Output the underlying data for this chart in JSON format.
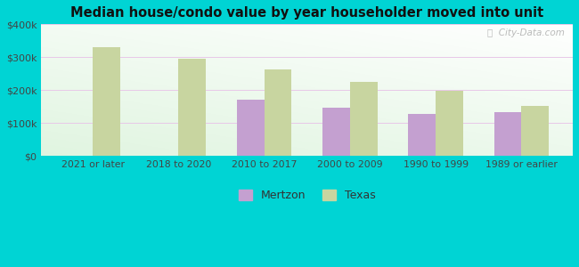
{
  "title": "Median house/condo value by year householder moved into unit",
  "categories": [
    "2021 or later",
    "2018 to 2020",
    "2010 to 2017",
    "2000 to 2009",
    "1990 to 1999",
    "1989 or earlier"
  ],
  "mertzon": [
    null,
    null,
    172000,
    147000,
    128000,
    132000
  ],
  "texas": [
    330000,
    295000,
    262000,
    225000,
    197000,
    152000
  ],
  "mertzon_color": "#c4a0d0",
  "texas_color": "#c8d5a0",
  "background_outer": "#00d4d4",
  "grid_color": "#e8d0e8",
  "watermark": "City-Data.com",
  "bar_width": 0.32,
  "ylim": [
    0,
    400000
  ],
  "yticks": [
    0,
    100000,
    200000,
    300000,
    400000
  ]
}
